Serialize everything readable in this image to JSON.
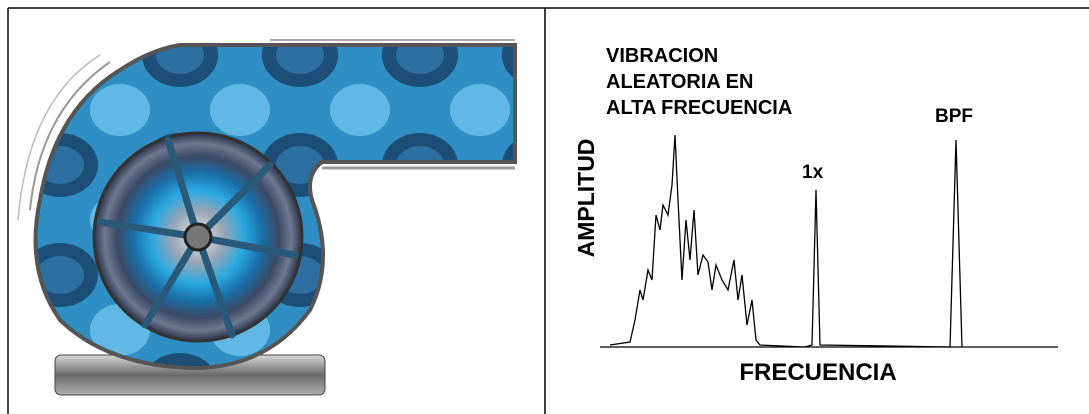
{
  "spectrum": {
    "annotation_lines": [
      "VIBRACION",
      "ALEATORIA EN",
      "ALTA FRECUENCIA"
    ],
    "peak_bpf": "BPF",
    "peak_1x": "1x",
    "y_label": "AMPLITUD",
    "x_label": "FRECUENCIA"
  }
}
